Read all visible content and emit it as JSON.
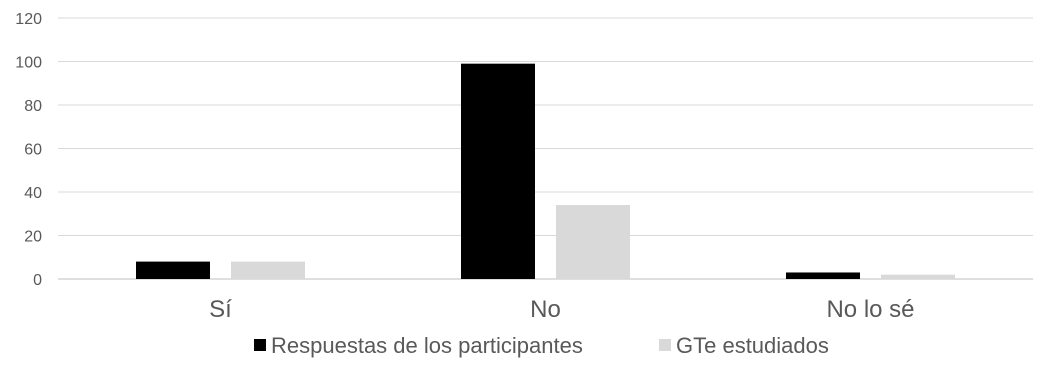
{
  "chart_data": {
    "type": "bar",
    "title": "",
    "xlabel": "",
    "ylabel": "",
    "categories": [
      "Sí",
      "No",
      "No lo sé"
    ],
    "series": [
      {
        "name": "Respuestas de los participantes",
        "values": [
          8,
          99,
          3
        ],
        "color": "#000000"
      },
      {
        "name": "GTe estudiados",
        "values": [
          8,
          34,
          2
        ],
        "color": "#d9d9d9"
      }
    ],
    "ylim": [
      0,
      120
    ],
    "yticks": [
      0,
      20,
      40,
      60,
      80,
      100,
      120
    ],
    "grid": true,
    "legend_position": "bottom"
  }
}
